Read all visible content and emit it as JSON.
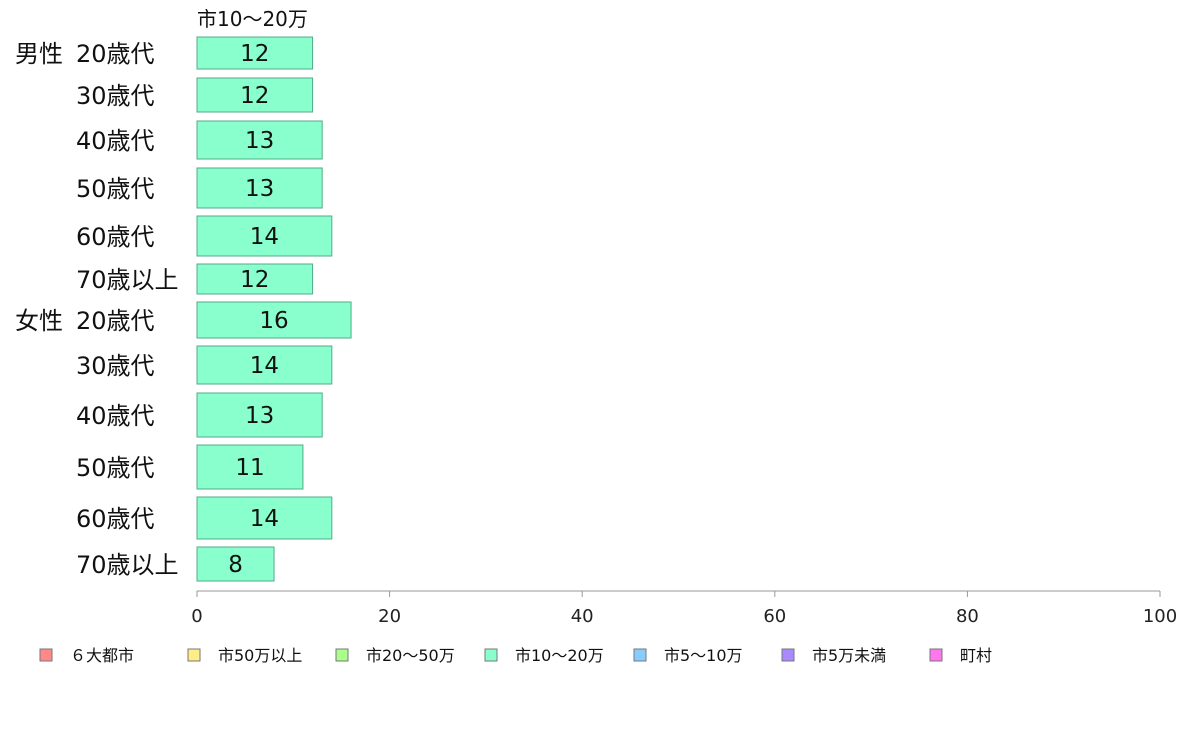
{
  "chart_data": {
    "type": "bar",
    "orientation": "horizontal",
    "series_title": "市10〜20万",
    "groups": [
      {
        "label": "男性",
        "categories": [
          "20歳代",
          "30歳代",
          "40歳代",
          "50歳代",
          "60歳代",
          "70歳以上"
        ],
        "values": [
          12,
          12,
          13,
          13,
          14,
          12
        ]
      },
      {
        "label": "女性",
        "categories": [
          "20歳代",
          "30歳代",
          "40歳代",
          "50歳代",
          "60歳代",
          "70歳以上"
        ],
        "values": [
          16,
          14,
          13,
          11,
          14,
          8
        ]
      }
    ],
    "xlim": [
      0,
      100
    ],
    "xticks": [
      0,
      20,
      40,
      60,
      80,
      100
    ],
    "bar_color": "#88ffcc",
    "bar_stroke": "#55aa88",
    "legend": [
      {
        "label": "６大都市",
        "color": "#ff8888"
      },
      {
        "label": "市50万以上",
        "color": "#ffee88"
      },
      {
        "label": "市20〜50万",
        "color": "#aaff88"
      },
      {
        "label": "市10〜20万",
        "color": "#88ffcc"
      },
      {
        "label": "市5〜10万",
        "color": "#88ccff"
      },
      {
        "label": "市5万未満",
        "color": "#aa88ff"
      },
      {
        "label": "町村",
        "color": "#ff77ee"
      }
    ]
  }
}
